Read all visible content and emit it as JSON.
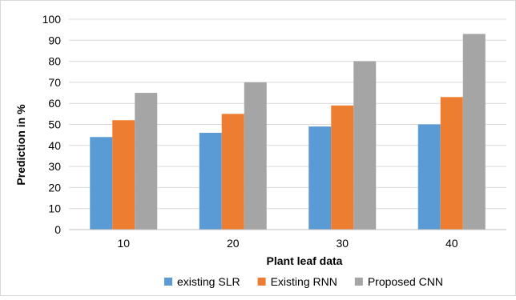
{
  "chart_data": {
    "type": "bar",
    "title": "",
    "xlabel": "Plant leaf data",
    "ylabel": "Prediction in %",
    "categories": [
      "10",
      "20",
      "30",
      "40"
    ],
    "ylim": [
      0,
      100
    ],
    "yticks": [
      "0",
      "10",
      "20",
      "30",
      "40",
      "50",
      "60",
      "70",
      "80",
      "90",
      "100"
    ],
    "grid": true,
    "legend_position": "bottom",
    "series": [
      {
        "name": "existing SLR",
        "color": "#5B9BD5",
        "values": [
          44,
          46,
          49,
          50
        ]
      },
      {
        "name": "Existing RNN",
        "color": "#ED7D31",
        "values": [
          52,
          55,
          59,
          63
        ]
      },
      {
        "name": "Proposed CNN",
        "color": "#A5A5A5",
        "values": [
          65,
          70,
          80,
          93
        ]
      }
    ]
  }
}
